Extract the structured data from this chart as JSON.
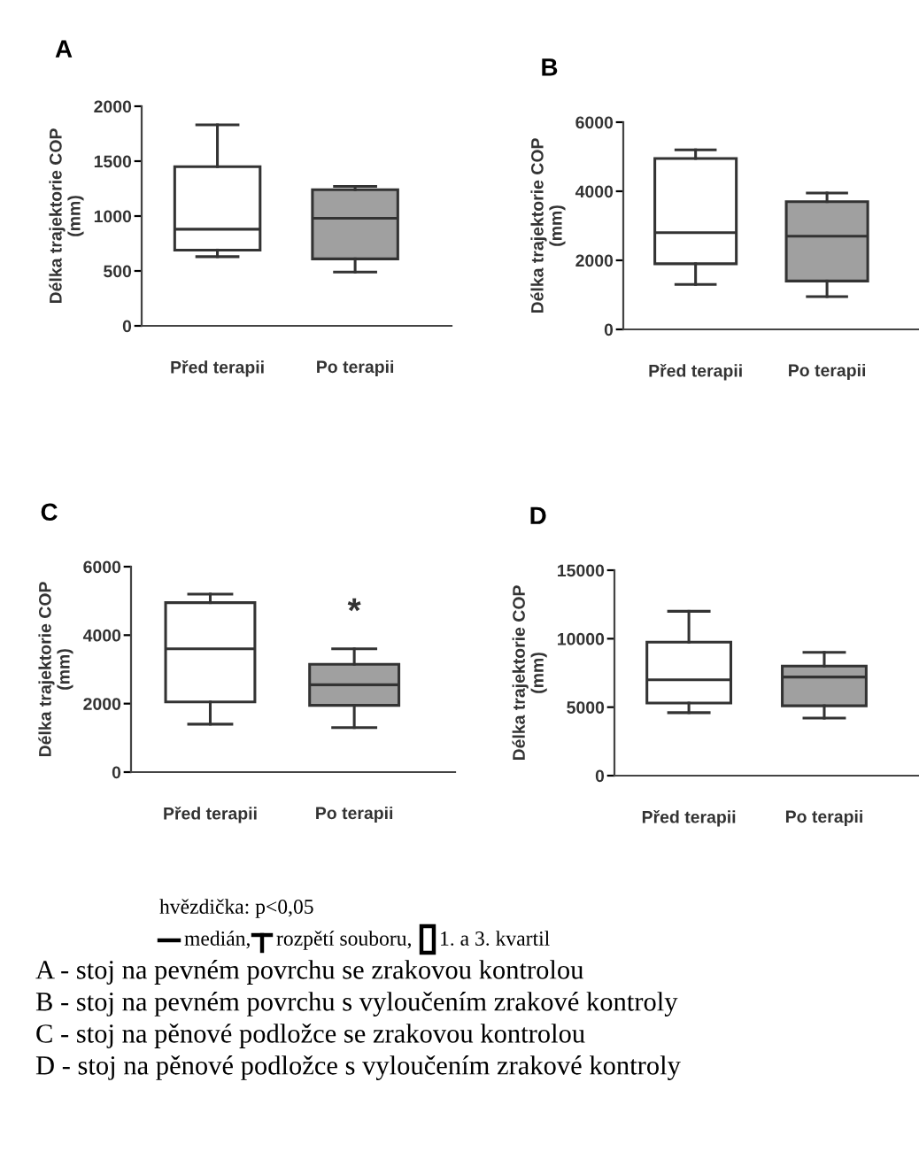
{
  "chart_data": [
    {
      "type": "box",
      "title": "A",
      "ylabel": "Délka trajektorie COP\n(mm)",
      "categories": [
        "Před terapii",
        "Po terapii"
      ],
      "colors": [
        "#ffffff",
        "#a0a0a0"
      ],
      "ylim": [
        0,
        2000
      ],
      "yticks": [
        0,
        500,
        1000,
        1500,
        2000
      ],
      "grid": false,
      "boxes": [
        {
          "low": 630,
          "q1": 690,
          "median": 880,
          "q3": 1450,
          "high": 1830
        },
        {
          "low": 490,
          "q1": 610,
          "median": 980,
          "q3": 1240,
          "high": 1270
        }
      ]
    },
    {
      "type": "box",
      "title": "B",
      "ylabel": "Délka trajektorie COP\n(mm)",
      "categories": [
        "Před terapii",
        "Po terapii"
      ],
      "colors": [
        "#ffffff",
        "#a0a0a0"
      ],
      "ylim": [
        0,
        6000
      ],
      "yticks": [
        0,
        2000,
        4000,
        6000
      ],
      "grid": false,
      "legend": false,
      "boxes": [
        {
          "low": 1300,
          "q1": 1900,
          "median": 2800,
          "q3": 4950,
          "high": 5200
        },
        {
          "low": 950,
          "q1": 1400,
          "median": 2700,
          "q3": 3700,
          "high": 3950
        }
      ]
    },
    {
      "type": "box",
      "title": "C",
      "ylabel": "Délka trajektorie COP\n(mm)",
      "categories": [
        "Před terapii",
        "Po terapii"
      ],
      "colors": [
        "#ffffff",
        "#a0a0a0"
      ],
      "ylim": [
        0,
        6000
      ],
      "yticks": [
        0,
        2000,
        4000,
        6000
      ],
      "grid": false,
      "legend": false,
      "boxes": [
        {
          "low": 1400,
          "q1": 2050,
          "median": 3600,
          "q3": 4950,
          "high": 5200
        },
        {
          "low": 1300,
          "q1": 1950,
          "median": 2550,
          "q3": 3150,
          "high": 3600
        }
      ],
      "annotations": [
        "*"
      ]
    },
    {
      "type": "box",
      "title": "D",
      "ylabel": "Délka trajektorie COP\n(mm)",
      "categories": [
        "Před terapii",
        "Po terapii"
      ],
      "colors": [
        "#ffffff",
        "#a0a0a0"
      ],
      "ylim": [
        0,
        15000
      ],
      "yticks": [
        0,
        5000,
        10000,
        15000
      ],
      "grid": false,
      "boxes": [
        {
          "low": 4600,
          "q1": 5300,
          "median": 7000,
          "q3": 9750,
          "high": 12000
        },
        {
          "low": 4200,
          "q1": 5100,
          "median": 7200,
          "q3": 8000,
          "high": 9000
        }
      ],
      "annotations": [
        "hvězdička: p<0,05",
        "medián,",
        "rozpětí souboru,",
        "1. a 3. kvartil",
        "A - stoj na pevném povrchu se zrakovou kontrolou",
        "B - stoj na pevném povrchu s vyloučením zrakové kontroly",
        "C - stoj na pěnové podložce se zrakovou kontrolou",
        "D - stoj na pěnové podložce s vyloučením zrakové kontroly"
      ]
    }
  ]
}
